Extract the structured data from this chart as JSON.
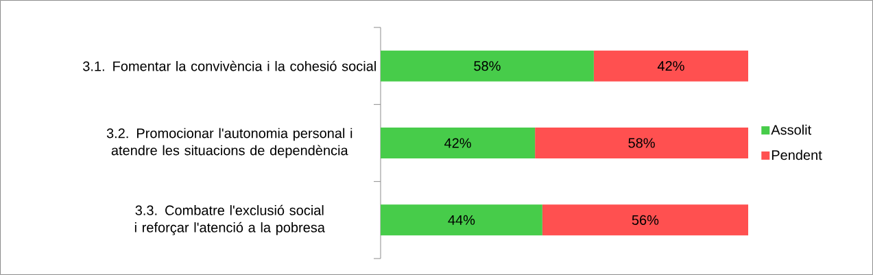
{
  "chart_data": {
    "type": "bar",
    "orientation": "horizontal",
    "stacked": true,
    "legend": "right",
    "categories": [
      "3.1. Fomentar la convivència i la cohesió social",
      "3.2. Promocionar l'autonomia personal i atendre les situacions de dependència",
      "3.3. Combatre l'exclusió social i reforçar l'atenció a la pobresa"
    ],
    "series": [
      {
        "name": "Assolit",
        "color": "#47cc4a",
        "values": [
          58,
          42,
          44
        ],
        "value_labels": [
          "58%",
          "42%",
          "44%"
        ]
      },
      {
        "name": "Pendent",
        "color": "#ff5050",
        "values": [
          42,
          58,
          56
        ],
        "value_labels": [
          "42%",
          "58%",
          "56%"
        ]
      }
    ]
  }
}
